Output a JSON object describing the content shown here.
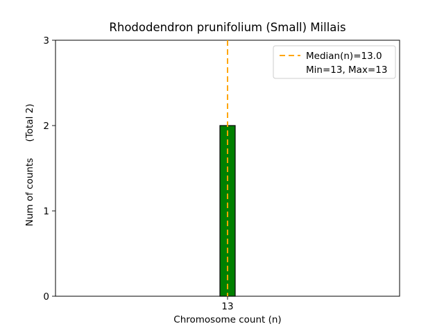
{
  "chart_data": {
    "type": "bar",
    "title": "Rhododendron prunifolium (Small) Millais",
    "xlabel": "Chromosome count (n)",
    "ylabel": "Num of counts (Total 2)",
    "ylabel_parts": [
      "Num of counts",
      "(Total 2)"
    ],
    "categories": [
      "13"
    ],
    "values": [
      2
    ],
    "total": 2,
    "ylim": [
      0,
      3
    ],
    "yticks": [
      0,
      1,
      2,
      3
    ],
    "xticks": [
      "13"
    ],
    "stats": {
      "median": "13.0",
      "min": 13,
      "max": 13
    },
    "legend": {
      "position": "upper right",
      "entries": [
        "Median(n)=13.0",
        "Min=13, Max=13"
      ]
    },
    "colors": {
      "bar_fill": "#008000",
      "bar_edge": "#000000",
      "median_line": "#ffa500",
      "legend_border": "#cccccc",
      "axis": "#000000"
    },
    "grid": false
  }
}
